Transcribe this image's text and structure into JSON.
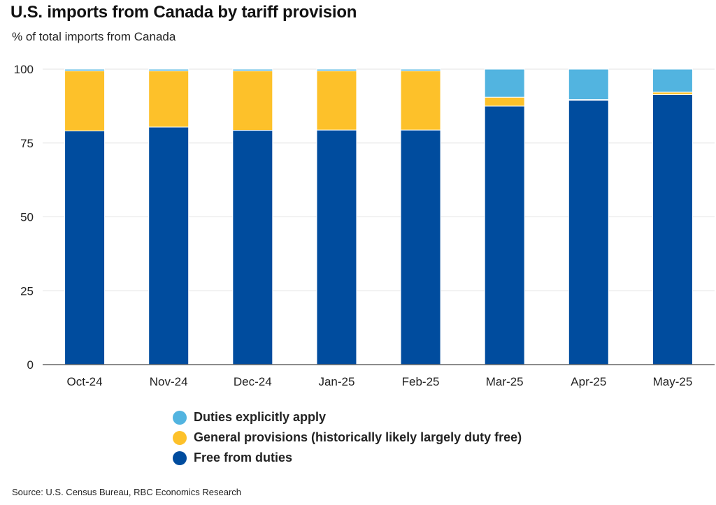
{
  "chart_data": {
    "type": "bar",
    "stacked": true,
    "title": "U.S. imports from Canada by tariff provision",
    "subtitle": "% of total imports from Canada",
    "xlabel": "",
    "ylabel": "",
    "ylim": [
      0,
      100
    ],
    "yticks": [
      0,
      25,
      50,
      75,
      100
    ],
    "grid": true,
    "legend_position": "bottom",
    "categories": [
      "Oct-24",
      "Nov-24",
      "Dec-24",
      "Jan-25",
      "Feb-25",
      "Mar-25",
      "Apr-25",
      "May-25"
    ],
    "series": [
      {
        "name": "Free from duties",
        "color": "#004C9E",
        "values": [
          79.1,
          80.4,
          79.3,
          79.4,
          79.4,
          87.5,
          89.5,
          91.4
        ]
      },
      {
        "name": "General provisions (historically likely largely duty free)",
        "color": "#FDC12A",
        "values": [
          20.3,
          19.0,
          20.1,
          20.0,
          20.0,
          3.0,
          0.2,
          0.8
        ]
      },
      {
        "name": "Duties explicitly apply",
        "color": "#52B4E0",
        "values": [
          0.6,
          0.6,
          0.6,
          0.6,
          0.6,
          9.5,
          10.3,
          7.8
        ]
      }
    ],
    "legend_order": [
      "Duties explicitly apply",
      "General provisions (historically likely largely duty free)",
      "Free from duties"
    ],
    "source": "Source: U.S. Census Bureau, RBC Economics Research"
  },
  "legend": [
    {
      "label": "Duties explicitly apply",
      "color": "#52B4E0"
    },
    {
      "label": "General provisions (historically likely largely duty free)",
      "color": "#FDC12A"
    },
    {
      "label": "Free from duties",
      "color": "#004C9E"
    }
  ]
}
